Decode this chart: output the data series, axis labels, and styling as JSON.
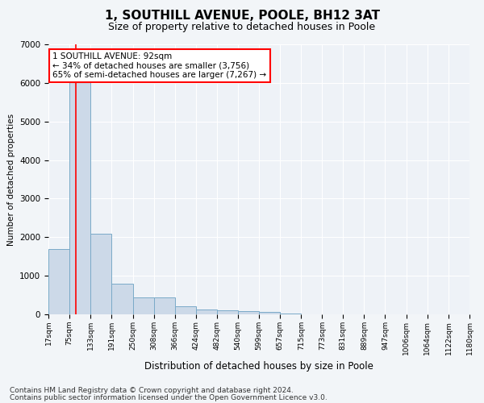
{
  "title": "1, SOUTHILL AVENUE, POOLE, BH12 3AT",
  "subtitle": "Size of property relative to detached houses in Poole",
  "xlabel": "Distribution of detached houses by size in Poole",
  "ylabel": "Number of detached properties",
  "footnote1": "Contains HM Land Registry data © Crown copyright and database right 2024.",
  "footnote2": "Contains public sector information licensed under the Open Government Licence v3.0.",
  "annotation_line1": "1 SOUTHILL AVENUE: 92sqm",
  "annotation_line2": "← 34% of detached houses are smaller (3,756)",
  "annotation_line3": "65% of semi-detached houses are larger (7,267) →",
  "bar_color": "#ccd9e8",
  "bar_edge_color": "#7aaac8",
  "red_line_x": 92,
  "bin_edges": [
    17,
    75,
    133,
    191,
    250,
    308,
    366,
    424,
    482,
    540,
    599,
    657,
    715,
    773,
    831,
    889,
    947,
    1006,
    1064,
    1122,
    1180
  ],
  "bar_heights": [
    1700,
    6100,
    2100,
    800,
    430,
    430,
    200,
    130,
    100,
    80,
    60,
    20,
    0,
    0,
    0,
    0,
    0,
    0,
    0,
    0
  ],
  "ylim": [
    0,
    7000
  ],
  "yticks": [
    0,
    1000,
    2000,
    3000,
    4000,
    5000,
    6000,
    7000
  ],
  "background_color": "#f2f5f8",
  "plot_bg_color": "#eef2f7",
  "grid_color": "#ffffff",
  "title_fontsize": 11,
  "subtitle_fontsize": 9,
  "footnote_fontsize": 6.5
}
